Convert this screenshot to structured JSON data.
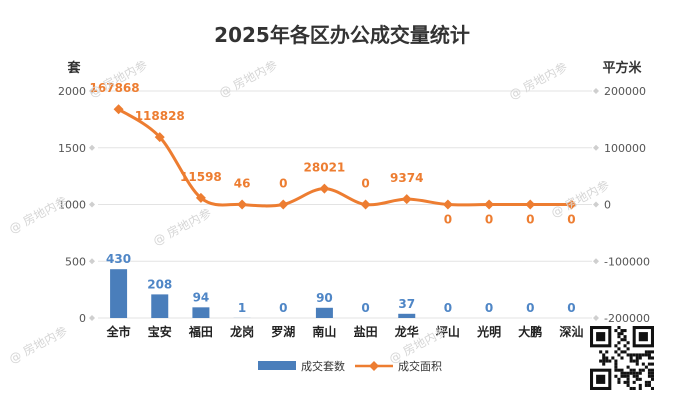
{
  "watermark_text": "@ 房地内参",
  "chart_data": {
    "type": "bar+line",
    "title": "2025年各区办公成交量统计",
    "y_left_label": "套",
    "y_right_label": "平方米",
    "categories": [
      "全市",
      "宝安",
      "福田",
      "龙岗",
      "罗湖",
      "南山",
      "盐田",
      "龙华",
      "坪山",
      "光明",
      "大鹏",
      "深汕"
    ],
    "series": [
      {
        "name": "成交套数",
        "type": "bar",
        "axis": "left",
        "color": "#4a7ebb",
        "values": [
          430,
          208,
          94,
          1,
          0,
          90,
          0,
          37,
          0,
          0,
          0,
          0
        ],
        "labels": [
          "430",
          "208",
          "94",
          "1",
          "0",
          "90",
          "0",
          "37",
          "0",
          "0",
          "0",
          "0"
        ]
      },
      {
        "name": "成交面积",
        "type": "line",
        "axis": "right",
        "color": "#ed7d31",
        "values": [
          167868,
          118828,
          11598,
          46,
          0,
          28021,
          0,
          9374,
          0,
          0,
          0,
          0
        ],
        "labels": [
          "167868",
          "118828",
          "11598",
          "46",
          "0",
          "28021",
          "0",
          "9374",
          "0",
          "0",
          "0",
          "0"
        ]
      }
    ],
    "y_left": {
      "min": 0,
      "max": 2000,
      "ticks": [
        0,
        500,
        1000,
        1500,
        2000
      ],
      "tick_labels": [
        "0",
        "500",
        "1000",
        "1500",
        "2000"
      ]
    },
    "y_right": {
      "min": -200000,
      "max": 200000,
      "ticks": [
        -200000,
        -100000,
        0,
        100000,
        200000
      ],
      "tick_labels": [
        "-200000",
        "-100000",
        "0",
        "100000",
        "200000"
      ]
    },
    "grid": true,
    "legend_position": "bottom",
    "qr_code": "qr-code-icon"
  }
}
